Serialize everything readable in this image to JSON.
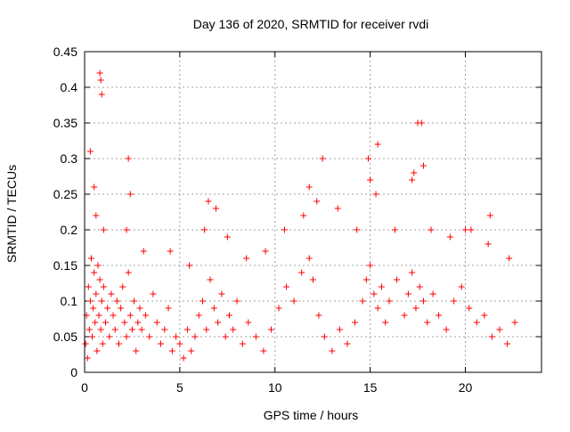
{
  "chart_data": {
    "type": "scatter",
    "title": "Day 136 of 2020, SRMTID for receiver rvdi",
    "xlabel": "GPS time / hours",
    "ylabel": "SRMTID / TECUs",
    "xlim": [
      0,
      24
    ],
    "ylim": [
      0,
      0.45
    ],
    "x_ticks": [
      0,
      5,
      10,
      15,
      20
    ],
    "x_tick_labels": [
      "0",
      "5",
      "10",
      "15",
      "20"
    ],
    "y_ticks": [
      0,
      0.05,
      0.1,
      0.15,
      0.2,
      0.25,
      0.3,
      0.35,
      0.4,
      0.45
    ],
    "y_tick_labels": [
      "0",
      "0.05",
      "0.1",
      "0.15",
      "0.2",
      "0.25",
      "0.3",
      "0.35",
      "0.4",
      "0.45"
    ],
    "grid": true,
    "marker": "plus",
    "colors": {
      "series": "#ff0000",
      "grid": "#a0a0a0",
      "axis": "#000000"
    },
    "series": [
      {
        "x": [
          0.05,
          0.1,
          0.15,
          0.2,
          0.25,
          0.3,
          0.35,
          0.4,
          0.45,
          0.5,
          0.55,
          0.6,
          0.65,
          0.7,
          0.75,
          0.8,
          0.85,
          0.9,
          0.95,
          1.0,
          1.1,
          1.2,
          1.3,
          1.4,
          1.5,
          1.6,
          1.7,
          1.8,
          1.9,
          2.0,
          2.1,
          2.2,
          2.3,
          2.4,
          2.5,
          2.6,
          2.7,
          2.8,
          2.9,
          3.0,
          3.2,
          3.4,
          3.6,
          3.8,
          4.0,
          4.2,
          4.4,
          4.6,
          4.8,
          5.0,
          5.2,
          5.4,
          5.6,
          5.8,
          6.0,
          6.2,
          6.4,
          6.6,
          6.8,
          7.0,
          7.2,
          7.4,
          7.6,
          7.8,
          8.0,
          8.3,
          8.6,
          9.0,
          9.4,
          9.8,
          10.2,
          10.6,
          11.0,
          11.4,
          11.8,
          12.0,
          12.3,
          12.6,
          13.0,
          13.4,
          13.8,
          14.2,
          14.6,
          14.8,
          15.0,
          15.2,
          15.4,
          15.6,
          15.8,
          16.0,
          16.4,
          16.8,
          17.0,
          17.2,
          17.4,
          17.6,
          17.8,
          18.0,
          18.3,
          18.6,
          19.0,
          19.4,
          19.8,
          20.2,
          20.6,
          21.0,
          21.4,
          21.8,
          22.2,
          22.6,
          0.3,
          0.5,
          0.8,
          0.85,
          0.9,
          2.3,
          2.4,
          6.5,
          6.9,
          11.8,
          12.5,
          14.9,
          15.0,
          15.4,
          17.3,
          17.5,
          17.7,
          17.8,
          20.0,
          21.3,
          0.6,
          1.0,
          2.2,
          3.1,
          4.5,
          5.5,
          6.3,
          7.5,
          8.5,
          9.5,
          10.5,
          11.5,
          12.2,
          13.3,
          14.3,
          15.3,
          16.3,
          17.2,
          18.2,
          19.2,
          20.3,
          21.2,
          22.3
        ],
        "y": [
          0.04,
          0.08,
          0.02,
          0.12,
          0.06,
          0.1,
          0.16,
          0.05,
          0.09,
          0.14,
          0.07,
          0.11,
          0.03,
          0.15,
          0.08,
          0.13,
          0.06,
          0.1,
          0.04,
          0.12,
          0.07,
          0.09,
          0.05,
          0.11,
          0.08,
          0.06,
          0.1,
          0.04,
          0.09,
          0.12,
          0.07,
          0.05,
          0.14,
          0.08,
          0.06,
          0.1,
          0.03,
          0.07,
          0.09,
          0.06,
          0.08,
          0.05,
          0.11,
          0.07,
          0.04,
          0.06,
          0.09,
          0.03,
          0.05,
          0.04,
          0.02,
          0.06,
          0.03,
          0.05,
          0.08,
          0.1,
          0.06,
          0.13,
          0.09,
          0.07,
          0.11,
          0.05,
          0.08,
          0.06,
          0.1,
          0.04,
          0.07,
          0.05,
          0.03,
          0.06,
          0.09,
          0.12,
          0.1,
          0.14,
          0.16,
          0.13,
          0.08,
          0.05,
          0.03,
          0.06,
          0.04,
          0.07,
          0.1,
          0.13,
          0.15,
          0.11,
          0.09,
          0.12,
          0.07,
          0.1,
          0.13,
          0.08,
          0.11,
          0.14,
          0.09,
          0.12,
          0.1,
          0.07,
          0.11,
          0.08,
          0.06,
          0.1,
          0.12,
          0.09,
          0.07,
          0.08,
          0.05,
          0.06,
          0.04,
          0.07,
          0.31,
          0.26,
          0.42,
          0.41,
          0.39,
          0.3,
          0.25,
          0.24,
          0.23,
          0.26,
          0.3,
          0.3,
          0.27,
          0.32,
          0.28,
          0.35,
          0.35,
          0.29,
          0.2,
          0.22,
          0.22,
          0.2,
          0.2,
          0.17,
          0.17,
          0.15,
          0.2,
          0.19,
          0.16,
          0.17,
          0.2,
          0.22,
          0.24,
          0.23,
          0.2,
          0.25,
          0.2,
          0.27,
          0.2,
          0.19,
          0.2,
          0.18,
          0.16
        ]
      }
    ]
  }
}
